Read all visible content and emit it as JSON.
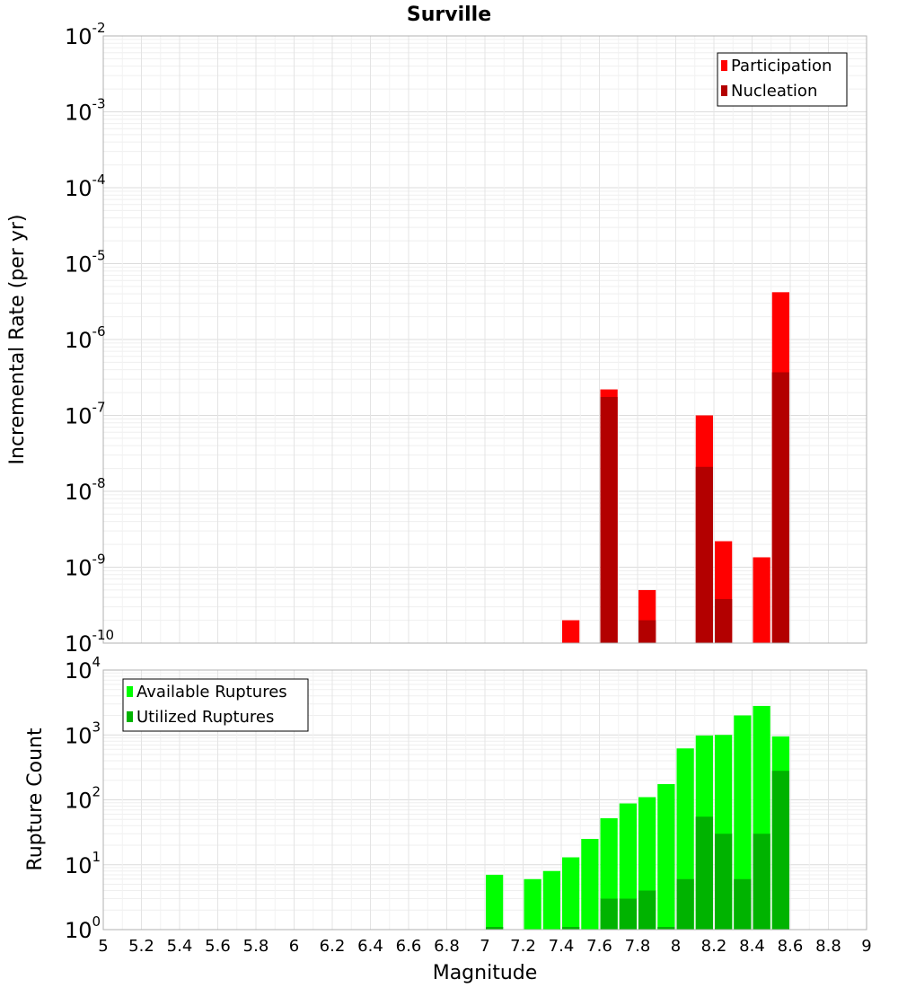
{
  "chart_data": [
    {
      "type": "bar",
      "title": "Surville",
      "ylabel": "Incremental Rate (per yr)",
      "xlabel": "",
      "yscale": "log",
      "ylim": [
        1e-10,
        0.01
      ],
      "xlim": [
        5,
        9
      ],
      "grid": true,
      "legend_position": "top-right",
      "y_ticks": [
        {
          "base": "10",
          "exp": "-10",
          "value": 1e-10
        },
        {
          "base": "10",
          "exp": "-9",
          "value": 1e-09
        },
        {
          "base": "10",
          "exp": "-8",
          "value": 1e-08
        },
        {
          "base": "10",
          "exp": "-7",
          "value": 1e-07
        },
        {
          "base": "10",
          "exp": "-6",
          "value": 1e-06
        },
        {
          "base": "10",
          "exp": "-5",
          "value": 1e-05
        },
        {
          "base": "10",
          "exp": "-4",
          "value": 0.0001
        },
        {
          "base": "10",
          "exp": "-3",
          "value": 0.001
        },
        {
          "base": "10",
          "exp": "-2",
          "value": 0.01
        }
      ],
      "x": [
        7.45,
        7.65,
        7.85,
        8.15,
        8.25,
        8.45,
        8.55
      ],
      "series": [
        {
          "name": "Participation",
          "color": "#ff0000",
          "values": [
            2e-10,
            2.2e-07,
            5e-10,
            1e-07,
            2.2e-09,
            1.35e-09,
            4.2e-06
          ]
        },
        {
          "name": "Nucleation",
          "color": "#b30000",
          "values": [
            null,
            1.75e-07,
            2e-10,
            2.1e-08,
            3.8e-10,
            null,
            3.7e-07
          ]
        }
      ]
    },
    {
      "type": "bar",
      "ylabel": "Rupture Count",
      "xlabel": "Magnitude",
      "yscale": "log",
      "ylim": [
        1,
        10000
      ],
      "xlim": [
        5,
        9
      ],
      "grid": true,
      "legend_position": "top-left",
      "y_ticks": [
        {
          "base": "10",
          "exp": "0",
          "value": 1
        },
        {
          "base": "10",
          "exp": "1",
          "value": 10
        },
        {
          "base": "10",
          "exp": "2",
          "value": 100
        },
        {
          "base": "10",
          "exp": "3",
          "value": 1000
        },
        {
          "base": "10",
          "exp": "4",
          "value": 10000
        }
      ],
      "x_ticks": [
        "5",
        "5.2",
        "5.4",
        "5.6",
        "5.8",
        "6",
        "6.2",
        "6.4",
        "6.6",
        "6.8",
        "7",
        "7.2",
        "7.4",
        "7.6",
        "7.8",
        "8",
        "8.2",
        "8.4",
        "8.6",
        "8.8",
        "9"
      ],
      "x": [
        7.05,
        7.25,
        7.35,
        7.45,
        7.55,
        7.65,
        7.75,
        7.85,
        7.95,
        8.05,
        8.15,
        8.25,
        8.35,
        8.45,
        8.55
      ],
      "series": [
        {
          "name": "Available Ruptures",
          "color": "#00ff00",
          "values": [
            7,
            6,
            8,
            13,
            25,
            52,
            88,
            110,
            175,
            620,
            980,
            1000,
            2000,
            2800,
            950
          ]
        },
        {
          "name": "Utilized Ruptures",
          "color": "#00b300",
          "values": [
            1.1,
            null,
            null,
            1.1,
            null,
            3,
            3,
            4,
            1.1,
            6,
            55,
            30,
            6,
            30,
            280
          ]
        }
      ]
    }
  ]
}
